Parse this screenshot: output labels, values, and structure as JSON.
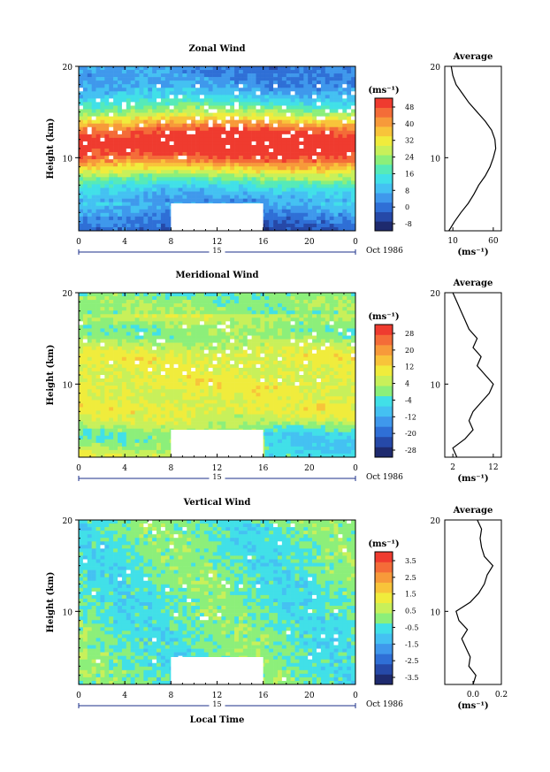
{
  "colors": {
    "zonal_scale": [
      "#1e2a6e",
      "#2649a8",
      "#2f6fd6",
      "#3f98ec",
      "#44c1f2",
      "#41e0e8",
      "#56eab8",
      "#8cef7a",
      "#c8f05a",
      "#f0ec3c",
      "#f8c43a",
      "#f79a3a",
      "#f46c38",
      "#ef3b2f"
    ],
    "meridional_scale": [
      "#1e2a6e",
      "#2649a8",
      "#2f6fd6",
      "#3f98ec",
      "#44c1f2",
      "#41e0e8",
      "#8cef7a",
      "#c8f05a",
      "#f0ec3c",
      "#f8c43a",
      "#f79a3a",
      "#f46c38",
      "#ef3b2f"
    ],
    "vertical_scale": [
      "#1e2a6e",
      "#2649a8",
      "#2f6fd6",
      "#3f98ec",
      "#44c1f2",
      "#41e0e8",
      "#8cef7a",
      "#c8f05a",
      "#f0ec3c",
      "#f8c43a",
      "#f79a3a",
      "#f46c38",
      "#ef3b2f"
    ]
  },
  "chart_data": [
    {
      "type": "heatmap",
      "title": "Zonal Wind",
      "ylabel": "Height (km)",
      "x_ticks": [
        "0",
        "4",
        "8",
        "12",
        "16",
        "20",
        "0"
      ],
      "xlim": [
        0,
        24
      ],
      "y_ticks": [
        "20",
        "10"
      ],
      "ylim": [
        2,
        20
      ],
      "day_label": "15",
      "date_label": "Oct 1986",
      "colorbar_unit": "(ms⁻¹)",
      "colorbar_ticks": [
        "48",
        "40",
        "32",
        "24",
        "16",
        "8",
        "0",
        "-8"
      ],
      "colorbar_range": [
        -12,
        52
      ],
      "missing_block": {
        "x": [
          8,
          16
        ],
        "height": [
          2,
          5
        ]
      },
      "profile": {
        "title": "Average",
        "x_ticks": [
          "10",
          "60"
        ],
        "xlim": [
          0,
          70
        ],
        "y_ticks": [
          "20",
          "10"
        ],
        "xlabel": "(ms⁻¹)",
        "height": [
          2.0,
          3.0,
          4.0,
          5.0,
          6.0,
          7.0,
          8.0,
          9.0,
          10.0,
          11.0,
          12.0,
          13.0,
          14.0,
          15.0,
          16.0,
          17.0,
          18.0,
          19.0,
          20.0
        ],
        "values": [
          5,
          12,
          20,
          29,
          36,
          42,
          50,
          56,
          60,
          63,
          62,
          58,
          50,
          40,
          30,
          22,
          14,
          10,
          8
        ]
      }
    },
    {
      "type": "heatmap",
      "title": "Meridional Wind",
      "ylabel": "Height (km)",
      "x_ticks": [
        "0",
        "4",
        "8",
        "12",
        "16",
        "20",
        "0"
      ],
      "xlim": [
        0,
        24
      ],
      "y_ticks": [
        "20",
        "10"
      ],
      "ylim": [
        2,
        20
      ],
      "day_label": "15",
      "date_label": "Oct 1986",
      "colorbar_unit": "(ms⁻¹)",
      "colorbar_ticks": [
        "28",
        "20",
        "12",
        "4",
        "-4",
        "-12",
        "-20",
        "-28"
      ],
      "colorbar_range": [
        -32,
        32
      ],
      "missing_block": {
        "x": [
          8,
          16
        ],
        "height": [
          2,
          5
        ]
      },
      "profile": {
        "title": "Average",
        "x_ticks": [
          "2",
          "12"
        ],
        "xlim": [
          0,
          14
        ],
        "y_ticks": [
          "20",
          "10"
        ],
        "xlabel": "(ms⁻¹)",
        "height": [
          2.0,
          3.0,
          4.0,
          5.0,
          6.0,
          7.0,
          8.0,
          9.0,
          10.0,
          11.0,
          12.0,
          13.0,
          14.0,
          15.0,
          16.0,
          17.0,
          18.0,
          19.0,
          20.0
        ],
        "values": [
          3,
          2,
          5,
          7,
          6,
          7,
          9,
          11,
          12,
          10,
          8,
          9,
          7,
          8,
          6,
          5,
          4,
          3,
          2
        ]
      }
    },
    {
      "type": "heatmap",
      "title": "Vertical Wind",
      "ylabel": "Height (km)",
      "xlabel": "Local Time",
      "x_ticks": [
        "0",
        "4",
        "8",
        "12",
        "16",
        "20",
        "0"
      ],
      "xlim": [
        0,
        24
      ],
      "y_ticks": [
        "20",
        "10"
      ],
      "ylim": [
        2,
        20
      ],
      "day_label": "15",
      "date_label": "Oct 1986",
      "colorbar_unit": "(ms⁻¹)",
      "colorbar_ticks": [
        "3.5",
        "2.5",
        "1.5",
        "0.5",
        "-0.5",
        "-1.5",
        "-2.5",
        "-3.5"
      ],
      "colorbar_range": [
        -4,
        4
      ],
      "missing_block": {
        "x": [
          8,
          16
        ],
        "height": [
          2,
          5
        ]
      },
      "profile": {
        "title": "Average",
        "x_ticks": [
          "0.0",
          "0.2"
        ],
        "xlim": [
          -0.2,
          0.2
        ],
        "y_ticks": [
          "20",
          "10"
        ],
        "xlabel": "(ms⁻¹)",
        "height": [
          2.0,
          3.0,
          4.0,
          5.0,
          6.0,
          7.0,
          8.0,
          9.0,
          10.0,
          11.0,
          12.0,
          13.0,
          14.0,
          15.0,
          16.0,
          17.0,
          18.0,
          19.0,
          20.0
        ],
        "values": [
          0.0,
          0.02,
          -0.03,
          -0.02,
          -0.05,
          -0.08,
          -0.04,
          -0.1,
          -0.12,
          -0.02,
          0.04,
          0.08,
          0.1,
          0.14,
          0.08,
          0.06,
          0.05,
          0.06,
          0.03
        ]
      }
    }
  ]
}
